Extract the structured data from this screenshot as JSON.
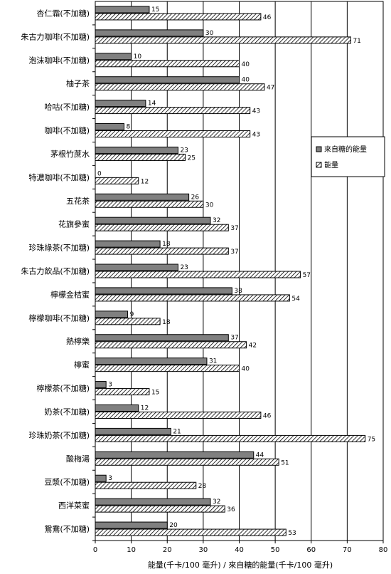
{
  "chart_data": {
    "type": "bar",
    "orientation": "horizontal",
    "categories": [
      "杏仁霜(不加糖)",
      "朱古力咖啡(不加糖)",
      "泡沫咖啡(不加糖)",
      "柚子茶",
      "哈咕(不加糖)",
      "咖啡(不加糖)",
      "茅根竹蔗水",
      "特濃咖啡(不加糖)",
      "五花茶",
      "花旗參蜜",
      "珍珠綠茶(不加糖)",
      "朱古力飲品(不加糖)",
      "檸檬金桔蜜",
      "檸檬咖啡(不加糖)",
      "熱檸樂",
      "檸蜜",
      "檸檬茶(不加糖)",
      "奶茶(不加糖)",
      "珍珠奶茶(不加糖)",
      "酸梅湯",
      "豆漿(不加糖)",
      "西洋菜蜜",
      "鴛鴦(不加糖)"
    ],
    "series": [
      {
        "name": "來自糖的能量",
        "pattern": "solid-gray",
        "color": "#808080",
        "values": [
          15,
          30,
          10,
          40,
          14,
          8,
          23,
          0,
          26,
          32,
          18,
          23,
          38,
          9,
          37,
          31,
          3,
          12,
          21,
          44,
          3,
          32,
          20
        ]
      },
      {
        "name": "能量",
        "pattern": "diagonal-hatch",
        "color": "#000000",
        "values": [
          46,
          71,
          40,
          47,
          43,
          43,
          25,
          12,
          30,
          37,
          37,
          57,
          54,
          18,
          42,
          40,
          15,
          46,
          75,
          51,
          28,
          36,
          53
        ]
      }
    ],
    "xlabel": "能量(千卡/100 毫升) / 來自糖的能量(千卡/100 毫升)",
    "ylabel": "",
    "title": "",
    "xlim": [
      0,
      80
    ],
    "xticks": [
      0,
      10,
      20,
      30,
      40,
      50,
      60,
      70,
      80
    ],
    "grid": "vertical",
    "legend_position": "right-middle"
  }
}
